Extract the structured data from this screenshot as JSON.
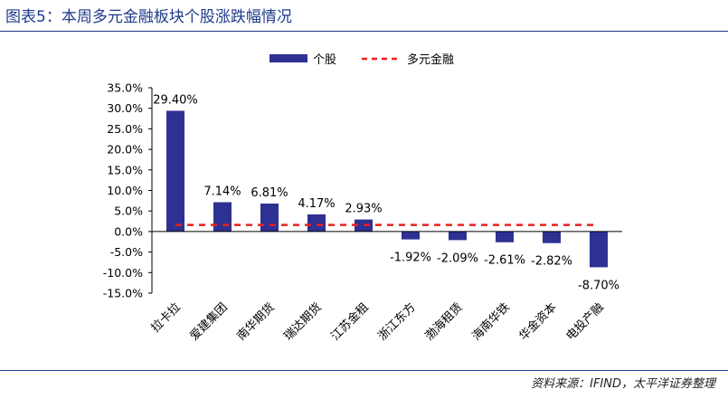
{
  "title": "图表5：本周多元金融板块个股涨跌幅情况",
  "source": "资料来源：IFIND，太平洋证券整理",
  "colors": {
    "bar": "#2e3192",
    "benchmark": "#e8211f",
    "title": "#1f3a8a"
  },
  "chart_data": {
    "type": "bar",
    "categories": [
      "拉卡拉",
      "爱建集团",
      "南华期货",
      "瑞达期货",
      "江苏金租",
      "浙江东方",
      "渤海租赁",
      "海南华铁",
      "华金资本",
      "电投产融"
    ],
    "series": [
      {
        "name": "个股",
        "values": [
          29.4,
          7.14,
          6.81,
          4.17,
          2.93,
          -1.92,
          -2.09,
          -2.61,
          -2.82,
          -8.7
        ]
      }
    ],
    "data_labels": [
      "29.40%",
      "7.14%",
      "6.81%",
      "4.17%",
      "2.93%",
      "-1.92%",
      "-2.09%",
      "-2.61%",
      "-2.82%",
      "-8.70%"
    ],
    "benchmark": {
      "name": "多元金融",
      "value": 1.6,
      "style": "dashed"
    },
    "y_ticks": [
      "35.0%",
      "30.0%",
      "25.0%",
      "20.0%",
      "15.0%",
      "10.0%",
      "5.0%",
      "0.0%",
      "-5.0%",
      "-10.0%",
      "-15.0%"
    ],
    "ylim": [
      -15,
      35
    ],
    "legend_position": "top-center",
    "grid": false
  }
}
